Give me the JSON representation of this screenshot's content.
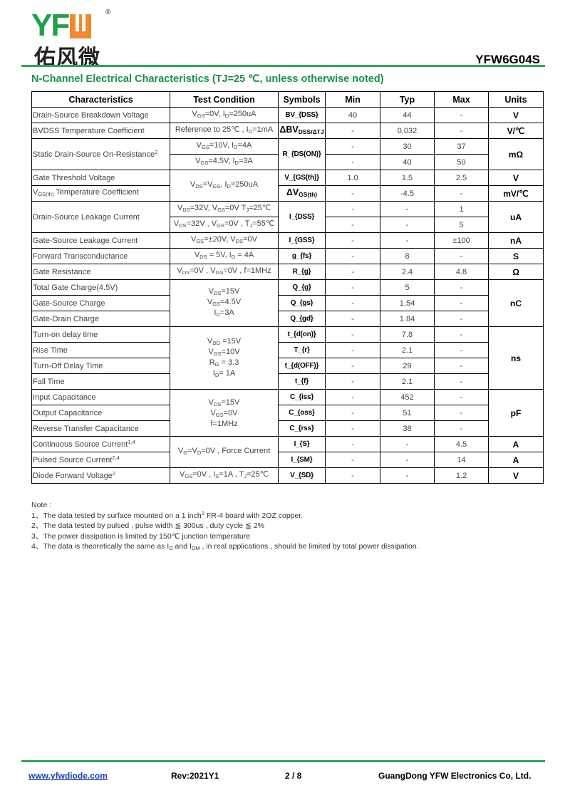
{
  "header": {
    "logo_text": "YFW",
    "logo_cn": "佑风微",
    "logo_reg": "®",
    "part_number": "YFW6G04S",
    "brand_green": "#22a04b",
    "brand_orange": "#ef8a2e"
  },
  "section_title": "N-Channel Electrical Characteristics (TJ=25 ℃, unless otherwise noted)",
  "table": {
    "headers": [
      "Characteristics",
      "Test Condition",
      "Symbols",
      "Min",
      "Typ",
      "Max",
      "Units"
    ],
    "rows": [
      {
        "char": "Drain-Source Breakdown Voltage",
        "cond": "V_{GS}=0V, I_{D}=250uA",
        "sym": "BV_{DSS}",
        "min": "40",
        "typ": "44",
        "max": "-",
        "units": "V"
      },
      {
        "char": "BVDSS Temperature Coefficient",
        "cond": "Reference to 25℃ , I_{D}=1mA",
        "sym": "ΔBV_{DSS/ΔTJ}",
        "min": "-",
        "typ": "0.032",
        "max": "-",
        "units": "V/℃"
      },
      {
        "char": "Static Drain-Source On-Resistance^{2}",
        "cond": "V_{GS}=10V, I_{D}=4A",
        "sym": "R_{DS(ON)}",
        "min": "-",
        "typ": "30",
        "max": "37",
        "units": "mΩ"
      },
      {
        "cond": "V_{GS}=4.5V, I_{D}=3A",
        "min": "-",
        "typ": "40",
        "max": "50"
      },
      {
        "char": "Gate Threshold  Voltage",
        "cond": "V_{DS}=V_{GS}, I_{D}=250uA",
        "sym": "V_{GS(th)}",
        "min": "1.0",
        "typ": "1.5",
        "max": "2.5",
        "units": "V"
      },
      {
        "char": "V_{GS(th)} Temperature Coefficient",
        "sym": "ΔV_{GS(th)}",
        "min": "-",
        "typ": "-4.5",
        "max": "-",
        "units": "mV/℃"
      },
      {
        "char": "Drain-Source Leakage Current",
        "cond": "V_{DS}=32V, V_{GS}=0V T_{J}=25℃",
        "sym": "I_{DSS}",
        "min": "-",
        "typ": "-",
        "max": "1",
        "units": "uA"
      },
      {
        "cond": "V_{DS}=32V , V_{GS}=0V , T_{J}=55℃",
        "min": "-",
        "typ": "-",
        "max": "5"
      },
      {
        "char": "Gate-Source Leakage Current",
        "cond": "V_{GS}=±20V, V_{DS}=0V",
        "sym": "I_{GSS}",
        "min": "-",
        "typ": "-",
        "max": "±100",
        "units": "nA"
      },
      {
        "char": "Forward  Transconductance",
        "cond": "V_{DS} = 5V, I_{D} = 4A",
        "sym": "g_{fs}",
        "min": "-",
        "typ": "8",
        "max": "-",
        "units": "S"
      },
      {
        "char": "Gate Resistance",
        "cond": "V_{DS}=0V , V_{GS}=0V , f=1MHz",
        "sym": "R_{g}",
        "min": "-",
        "typ": "2.4",
        "max": "4.8",
        "units": "Ω"
      },
      {
        "char": "Total Gate Charge(4.5V)",
        "cond": "V_{DS}=15V|V_{GS}=4.5V|I_{D}=3A",
        "sym": "Q_{g}",
        "min": "-",
        "typ": "5",
        "max": "-",
        "units": "nC"
      },
      {
        "char": "Gate-Source Charge",
        "sym": "Q_{gs}",
        "min": "-",
        "typ": "1.54",
        "max": "-"
      },
      {
        "char": "Gate-Drain Charge",
        "sym": "Q_{gd}",
        "min": "-",
        "typ": "1.84",
        "max": "-"
      },
      {
        "char": "Turn-on delay time",
        "cond": "V_{DD} =15V|V_{GS}=10V|R_{G} = 3.3|I_{D}= 1A",
        "sym": "t_{d(on)}",
        "min": "-",
        "typ": "7.8",
        "max": "-",
        "units": "ns"
      },
      {
        "char": "Rise Time",
        "sym": "T_{r}",
        "min": "-",
        "typ": "2.1",
        "max": "-"
      },
      {
        "char": "Turn-Off  Delay Time",
        "sym": "t_{d(OFF)}",
        "min": "-",
        "typ": "29",
        "max": "-"
      },
      {
        "char": "Fall Time",
        "sym": "t_{f}",
        "min": "-",
        "typ": "2.1",
        "max": "-"
      },
      {
        "char": "Input Capacitance",
        "cond": "V_{DS}=15V|V_{GS}=0V|f=1MHz",
        "sym": "C_{iss}",
        "min": "-",
        "typ": "452",
        "max": "-",
        "units": "pF"
      },
      {
        "char": "Output Capacitance",
        "sym": "C_{oss}",
        "min": "-",
        "typ": "51",
        "max": "-"
      },
      {
        "char": "Reverse Transfer Capacitance",
        "sym": "C_{rss}",
        "min": "-",
        "typ": "38",
        "max": "-"
      },
      {
        "char": "Continuous  Source  Current^{1,4}",
        "cond": "V_{G}=V_{D}=0V , Force Current",
        "sym": "I_{S}",
        "min": "-",
        "typ": "-",
        "max": "4.5",
        "units": "A"
      },
      {
        "char": "Pulsed Source Current^{2,4}",
        "sym": "I_{SM}",
        "min": "-",
        "typ": "-",
        "max": "14",
        "units": "A"
      },
      {
        "char": "Diode Forward Voltage^{2}",
        "cond": "V_{GS}=0V , I_{S}=1A , T_{J}=25℃",
        "sym": "V_{SD}",
        "min": "-",
        "typ": "-",
        "max": "1.2",
        "units": "V"
      }
    ]
  },
  "notes": {
    "title": "Note :",
    "items": [
      "1、The data tested by surface mounted on a 1 inch^{2} FR-4 board with 2OZ copper.",
      "2、The data tested by pulsed , pulse width ≦ 300us , duty cycle ≦ 2%",
      "3、The power dissipation is limited by 150℃ junction temperature",
      "4、The data is theoretically the same as I_{D} and I_{DM} , in real applications , should be limited by total power dissipation."
    ]
  },
  "footer": {
    "website": "www.yfwdiode.com",
    "revision": "Rev:2021Y1",
    "page": "2 / 8",
    "company": "GuangDong YFW Electronics Co, Ltd."
  }
}
